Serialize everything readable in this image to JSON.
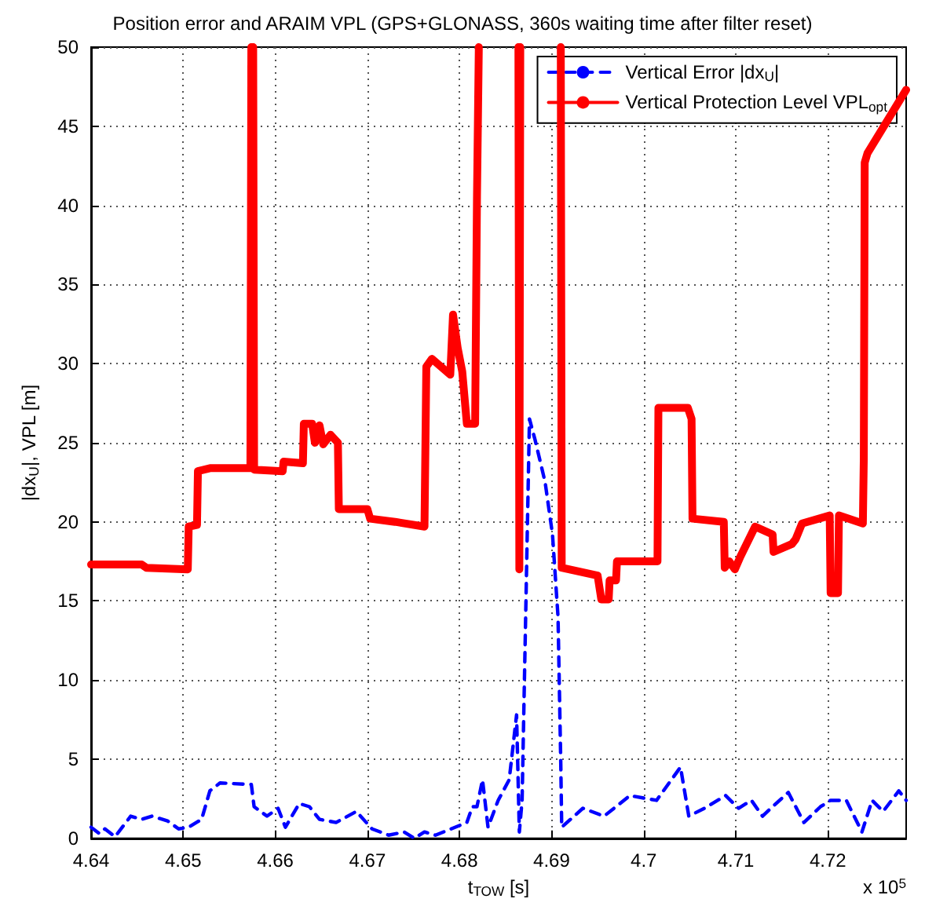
{
  "chart_data": {
    "type": "line",
    "title": "Position error and ARAIM VPL (GPS+GLONASS, 360s waiting time after filter reset)",
    "xlabel": "t$_{TOW}$ [s]",
    "ylabel": "|dx$_{U}$|, VPL [m]",
    "annotations": [
      "x 10$^{5}$"
    ],
    "xlim": [
      4.64,
      4.7285
    ],
    "xticks": [
      4.64,
      4.65,
      4.66,
      4.67,
      4.68,
      4.69,
      4.7,
      4.71,
      4.72
    ],
    "ylim": [
      0,
      50
    ],
    "yticks": [
      0,
      5,
      10,
      15,
      20,
      25,
      30,
      35,
      40,
      45,
      50
    ],
    "grid": true,
    "legend": "top right",
    "marker": "none",
    "series": [
      {
        "name": "Vertical Error |dx$_{U}$|",
        "color": "#0000ff",
        "line_style": "dashed",
        "x": [
          4.64,
          4.6409,
          4.6415,
          4.6426,
          4.6443,
          4.6455,
          4.6466,
          4.6483,
          4.6495,
          4.6506,
          4.652,
          4.6529,
          4.654,
          4.6574,
          4.6577,
          4.6591,
          4.6603,
          4.6611,
          4.6626,
          4.6637,
          4.6648,
          4.6666,
          4.6688,
          4.6705,
          4.6723,
          4.674,
          4.6751,
          4.6762,
          4.6774,
          4.6791,
          4.6808,
          4.6814,
          4.6819,
          4.6825,
          4.6831,
          4.6842,
          4.6854,
          4.6862,
          4.6865,
          4.6868,
          4.6876,
          4.6882,
          4.6893,
          4.6901,
          4.6907,
          4.691,
          4.6911,
          4.6934,
          4.6957,
          4.6985,
          4.7014,
          4.704,
          4.7049,
          4.7066,
          4.7089,
          4.7103,
          4.7117,
          4.7129,
          4.714,
          4.7157,
          4.7174,
          4.7192,
          4.7203,
          4.722,
          4.7237,
          4.7248,
          4.726,
          4.7277,
          4.7285
        ],
        "values": [
          0.7,
          0.3,
          0.6,
          0.1,
          1.4,
          1.2,
          1.4,
          1.1,
          0.6,
          0.7,
          1.2,
          3.0,
          3.5,
          3.4,
          2.0,
          1.4,
          1.9,
          0.7,
          2.2,
          2.0,
          1.2,
          1.0,
          1.7,
          0.6,
          0.2,
          0.4,
          0,
          0.4,
          0.2,
          0.6,
          1.0,
          2.0,
          2.0,
          3.7,
          0.7,
          2.4,
          3.7,
          7.8,
          0.4,
          2.4,
          26.5,
          25.2,
          22.5,
          19.2,
          14.0,
          4.7,
          0.7,
          1.9,
          1.4,
          2.7,
          2.4,
          4.5,
          1.4,
          1.9,
          2.7,
          1.9,
          2.4,
          1.4,
          2.0,
          2.9,
          1.0,
          2.0,
          2.4,
          2.4,
          0.4,
          2.4,
          1.7,
          3.0,
          2.4
        ]
      },
      {
        "name": "Vertical Protection Level VPL$_{opt}$",
        "color": "#ff0000",
        "line_style": "solid",
        "x": [
          4.64,
          4.6455,
          4.646,
          4.6505,
          4.6506,
          4.6515,
          4.6516,
          4.653,
          4.6573,
          4.6574,
          4.6575,
          4.6576,
          4.6577,
          4.6608,
          4.6609,
          4.663,
          4.6631,
          4.664,
          4.6643,
          4.6648,
          4.6652,
          4.666,
          4.6668,
          4.6669,
          4.67,
          4.6703,
          4.673,
          4.6762,
          4.6764,
          4.677,
          4.679,
          4.6793,
          4.6798,
          4.6803,
          4.6808,
          4.6817,
          4.6819,
          4.6821,
          4.6822,
          4.6864,
          4.6865,
          4.6866,
          4.6867,
          4.691,
          4.6911,
          4.695,
          4.6954,
          4.6962,
          4.6963,
          4.697,
          4.6971,
          4.7015,
          4.7016,
          4.7048,
          4.7052,
          4.7053,
          4.7087,
          4.7088,
          4.7093,
          4.7099,
          4.7105,
          4.7121,
          4.714,
          4.7141,
          4.7161,
          4.7165,
          4.7172,
          4.7202,
          4.7203,
          4.7211,
          4.7212,
          4.7238,
          4.7239,
          4.724,
          4.7243,
          4.7285
        ],
        "values": [
          17.3,
          17.3,
          17.1,
          17.0,
          19.7,
          19.8,
          23.2,
          23.4,
          23.4,
          50,
          null,
          50,
          23.3,
          23.2,
          23.8,
          23.7,
          26.2,
          26.2,
          25.0,
          26.1,
          24.9,
          25.5,
          25.0,
          20.8,
          20.8,
          20.2,
          20.0,
          19.7,
          29.8,
          30.3,
          29.3,
          33.1,
          31.0,
          29.5,
          26.2,
          26.2,
          40.5,
          50,
          null,
          50,
          17.0,
          50,
          null,
          50,
          17.1,
          16.6,
          15.1,
          15.1,
          16.3,
          16.3,
          17.5,
          17.5,
          27.2,
          27.2,
          26.5,
          20.2,
          20.0,
          17.1,
          17.5,
          17.0,
          17.8,
          19.7,
          19.2,
          18.1,
          18.6,
          18.9,
          19.9,
          20.4,
          15.5,
          15.5,
          20.4,
          19.9,
          24.0,
          42.7,
          43.3,
          47.3
        ]
      }
    ]
  }
}
